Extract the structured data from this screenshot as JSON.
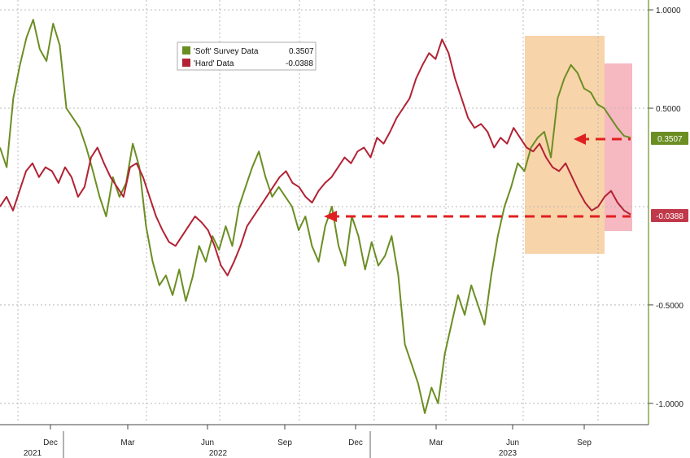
{
  "chart_data": {
    "type": "line",
    "x_axis": {
      "months": [
        "Dec",
        "Mar",
        "Jun",
        "Sep",
        "Dec",
        "Mar",
        "Jun",
        "Sep"
      ],
      "years": [
        "2021",
        "2022",
        "2023"
      ]
    },
    "y_axis": {
      "ylim": [
        -1.1,
        1.05
      ],
      "ticks": [
        1.0,
        0.5,
        -0.5,
        -1.0
      ],
      "tick_labels": [
        "1.0000",
        "0.5000",
        "-0.5000",
        "-1.0000"
      ],
      "grid": true
    },
    "legend": {
      "placement": "top-center",
      "entries": [
        {
          "name": "'Soft' Survey Data",
          "value": "0.3507",
          "color": "#6b8e23"
        },
        {
          "name": "'Hard' Data",
          "value": "-0.0388",
          "color": "#b22234"
        }
      ]
    },
    "end_labels": [
      {
        "series": "soft",
        "text": "0.3507",
        "color": "#6b8e23"
      },
      {
        "series": "hard",
        "text": "-0.0388",
        "color": "#c0394b"
      }
    ],
    "series": [
      {
        "name": "'Soft' Survey Data",
        "color": "#6b8e23",
        "x": [
          0,
          1,
          2,
          3,
          4,
          5,
          6,
          7,
          8,
          9,
          10,
          11,
          12,
          13,
          14,
          15,
          16,
          17,
          18,
          19,
          20,
          21,
          22,
          23,
          24,
          25,
          26,
          27,
          28,
          29,
          30,
          31,
          32,
          33,
          34,
          35,
          36,
          37,
          38,
          39,
          40,
          41,
          42,
          43,
          44,
          45,
          46,
          47,
          48,
          49,
          50,
          51,
          52,
          53,
          54,
          55,
          56,
          57,
          58,
          59,
          60,
          61,
          62,
          63,
          64,
          65,
          66,
          67,
          68,
          69,
          70,
          71,
          72,
          73,
          74,
          75,
          76,
          77,
          78,
          79,
          80,
          81,
          82,
          83,
          84,
          85,
          86,
          87,
          88,
          89,
          90,
          91,
          92,
          93,
          94,
          95,
          96,
          97,
          98,
          99,
          100,
          101,
          102,
          103,
          104,
          105,
          106,
          107,
          108,
          109,
          110,
          111,
          112,
          113,
          114,
          115,
          116,
          117,
          118,
          119,
          120,
          121,
          122
        ],
        "values": [
          0.3,
          0.2,
          0.55,
          0.72,
          0.86,
          0.95,
          0.8,
          0.74,
          0.93,
          0.82,
          0.5,
          0.45,
          0.4,
          0.3,
          0.18,
          0.05,
          -0.05,
          0.15,
          0.05,
          0.12,
          0.32,
          0.2,
          -0.1,
          -0.28,
          -0.4,
          -0.35,
          -0.45,
          -0.32,
          -0.48,
          -0.36,
          -0.2,
          -0.28,
          -0.15,
          -0.22,
          -0.1,
          -0.2,
          0.0,
          0.1,
          0.2,
          0.28,
          0.15,
          0.05,
          0.1,
          0.05,
          0.0,
          -0.12,
          -0.05,
          -0.2,
          -0.28,
          -0.1,
          0.0,
          -0.2,
          -0.3,
          -0.05,
          -0.15,
          -0.32,
          -0.18,
          -0.3,
          -0.25,
          -0.15,
          -0.35,
          -0.7,
          -0.8,
          -0.9,
          -1.05,
          -0.92,
          -1.0,
          -0.75,
          -0.6,
          -0.45,
          -0.55,
          -0.4,
          -0.5,
          -0.6,
          -0.35,
          -0.15,
          0.0,
          0.1,
          0.22,
          0.18,
          0.3,
          0.35,
          0.38,
          0.25,
          0.55,
          0.65,
          0.72,
          0.68,
          0.6,
          0.58,
          0.52,
          0.5,
          0.45,
          0.4,
          0.36,
          0.35,
          0.35,
          0.35,
          0.35,
          0.35,
          0.35,
          0.35,
          0.35,
          0.35,
          0.35,
          0.35,
          0.35,
          0.35,
          0.35,
          0.35,
          0.35,
          0.35,
          0.35,
          0.35,
          0.35,
          0.35,
          0.35,
          0.35,
          0.35,
          0.35,
          0.35,
          0.35,
          0.35
        ]
      },
      {
        "name": "'Hard' Data",
        "color": "#b22234",
        "x": [
          0,
          1,
          2,
          3,
          4,
          5,
          6,
          7,
          8,
          9,
          10,
          11,
          12,
          13,
          14,
          15,
          16,
          17,
          18,
          19,
          20,
          21,
          22,
          23,
          24,
          25,
          26,
          27,
          28,
          29,
          30,
          31,
          32,
          33,
          34,
          35,
          36,
          37,
          38,
          39,
          40,
          41,
          42,
          43,
          44,
          45,
          46,
          47,
          48,
          49,
          50,
          51,
          52,
          53,
          54,
          55,
          56,
          57,
          58,
          59,
          60,
          61,
          62,
          63,
          64,
          65,
          66,
          67,
          68,
          69,
          70,
          71,
          72,
          73,
          74,
          75,
          76,
          77,
          78,
          79,
          80,
          81,
          82,
          83,
          84,
          85,
          86,
          87,
          88,
          89,
          90,
          91,
          92,
          93,
          94,
          95,
          96,
          97,
          98,
          99,
          100,
          101,
          102,
          103,
          104,
          105,
          106,
          107,
          108,
          109,
          110,
          111,
          112,
          113,
          114,
          115,
          116,
          117,
          118,
          119,
          120,
          121,
          122
        ],
        "values": [
          0.0,
          0.05,
          -0.02,
          0.08,
          0.18,
          0.22,
          0.15,
          0.2,
          0.18,
          0.12,
          0.2,
          0.15,
          0.05,
          0.1,
          0.25,
          0.3,
          0.22,
          0.15,
          0.1,
          0.05,
          0.2,
          0.22,
          0.15,
          0.05,
          -0.05,
          -0.12,
          -0.18,
          -0.2,
          -0.15,
          -0.1,
          -0.05,
          -0.08,
          -0.12,
          -0.2,
          -0.3,
          -0.35,
          -0.28,
          -0.2,
          -0.1,
          -0.05,
          0.0,
          0.05,
          0.1,
          0.15,
          0.18,
          0.12,
          0.1,
          0.05,
          0.02,
          0.08,
          0.12,
          0.15,
          0.2,
          0.25,
          0.22,
          0.28,
          0.3,
          0.25,
          0.35,
          0.32,
          0.38,
          0.45,
          0.5,
          0.55,
          0.65,
          0.72,
          0.78,
          0.75,
          0.85,
          0.78,
          0.65,
          0.55,
          0.45,
          0.4,
          0.42,
          0.38,
          0.3,
          0.35,
          0.32,
          0.4,
          0.35,
          0.3,
          0.28,
          0.32,
          0.25,
          0.2,
          0.18,
          0.22,
          0.15,
          0.08,
          0.02,
          -0.02,
          0.0,
          0.05,
          0.08,
          0.02,
          -0.02,
          -0.04,
          -0.04,
          -0.04,
          -0.04,
          -0.04,
          -0.04,
          -0.04,
          -0.04,
          -0.04,
          -0.04,
          -0.04,
          -0.04,
          -0.04,
          -0.04,
          -0.04,
          -0.04,
          -0.04,
          -0.04,
          -0.04,
          -0.04,
          -0.04,
          -0.04,
          -0.04,
          -0.04,
          -0.04,
          -0.04
        ]
      }
    ]
  },
  "colors": {
    "soft": "#6b8e23",
    "hard": "#b22234",
    "orange_shade": "#f6c58e",
    "pink_shade": "#f29aa6",
    "arrow": "#e02020"
  }
}
